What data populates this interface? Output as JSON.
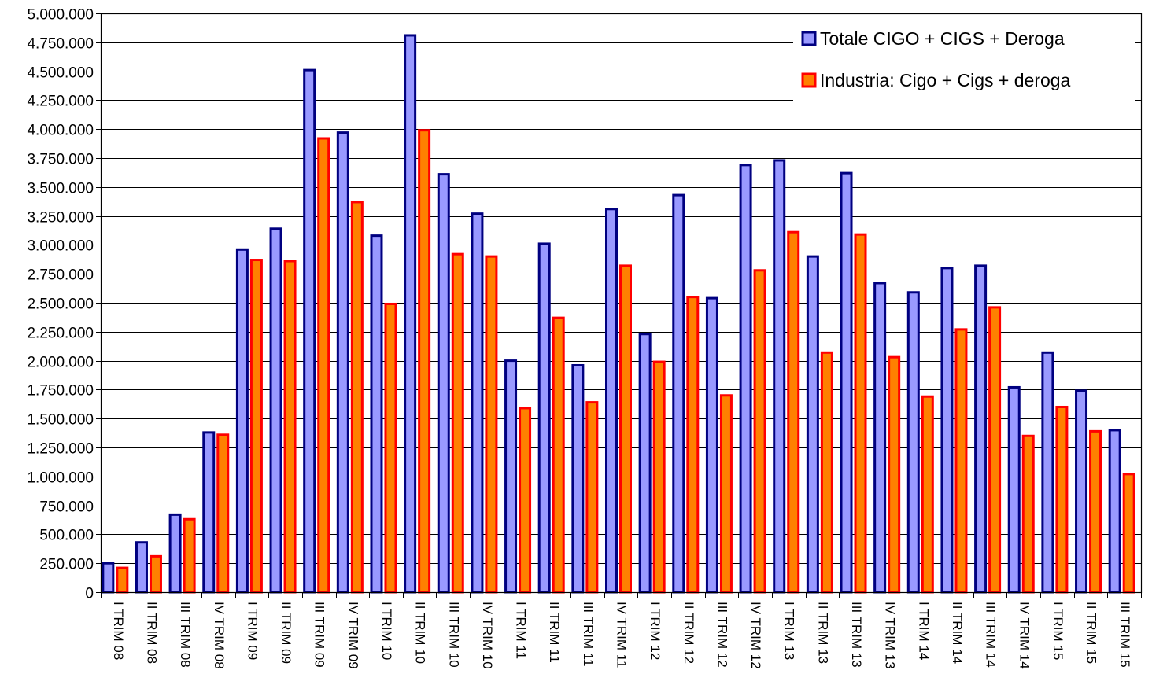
{
  "chart_data": {
    "type": "bar",
    "categories": [
      "I TRIM 08",
      "II TRIM 08",
      "III TRIM 08",
      "IV TRIM 08",
      "I TRIM 09",
      "II TRIM 09",
      "III TRIM 09",
      "IV TRIM 09",
      "I TRIM 10",
      "II TRIM 10",
      "III TRIM 10",
      "IV TRIM 10",
      "I TRIM 11",
      "II TRIM 11",
      "III TRIM 11",
      "IV TRIM 11",
      "I TRIM 12",
      "II TRIM 12",
      "III TRIM 12",
      "IV TRIM 12",
      "I TRIM 13",
      "II TRIM 13",
      "III TRIM 13",
      "IV TRIM 13",
      "I TRIM 14",
      "II TRIM 14",
      "III TRIM 14",
      "IV TRIM 14",
      "I TRIM 15",
      "II TRIM 15",
      "III TRIM 15"
    ],
    "series": [
      {
        "name": "Totale CIGO + CIGS + Deroga",
        "color": "#9999ff",
        "border": "#000080",
        "values": [
          250000,
          430000,
          670000,
          1380000,
          2960000,
          3140000,
          4510000,
          3970000,
          3080000,
          4810000,
          3610000,
          3270000,
          2000000,
          3010000,
          1960000,
          3310000,
          2230000,
          3430000,
          2540000,
          3690000,
          3730000,
          2900000,
          3620000,
          2670000,
          2590000,
          2800000,
          2820000,
          1770000,
          2070000,
          1740000,
          1400000
        ]
      },
      {
        "name": "Industria: Cigo + Cigs + deroga",
        "color": "#ff8000",
        "border": "#ff0000",
        "values": [
          210000,
          310000,
          630000,
          1360000,
          2870000,
          2860000,
          3920000,
          3370000,
          2490000,
          3990000,
          2920000,
          2900000,
          1590000,
          2370000,
          1640000,
          2820000,
          1990000,
          2550000,
          1700000,
          2780000,
          3110000,
          2070000,
          3090000,
          2030000,
          1690000,
          2270000,
          2460000,
          1350000,
          1600000,
          1390000,
          1020000
        ]
      }
    ],
    "yticks": [
      "0",
      "250.000",
      "500.000",
      "750.000",
      "1.000.000",
      "1.250.000",
      "1.500.000",
      "1.750.000",
      "2.000.000",
      "2.250.000",
      "2.500.000",
      "2.750.000",
      "3.000.000",
      "3.250.000",
      "3.500.000",
      "3.750.000",
      "4.000.000",
      "4.250.000",
      "4.500.000",
      "4.750.000",
      "5.000.000"
    ],
    "ylim": [
      0,
      5000000
    ],
    "grid": true,
    "legend_position": "top-right",
    "title": "",
    "xlabel": "",
    "ylabel": ""
  }
}
